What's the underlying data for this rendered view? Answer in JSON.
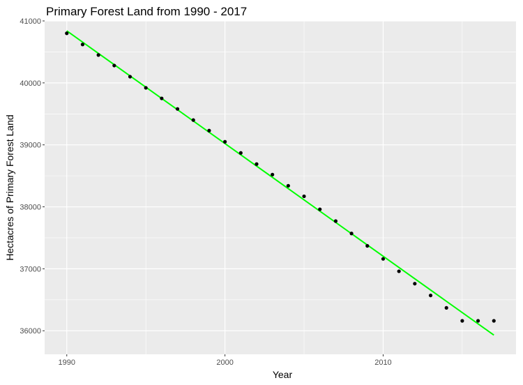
{
  "chart_data": {
    "type": "scatter",
    "title": "Primary Forest Land from 1990 - 2017",
    "xlabel": "Year",
    "ylabel": "Hectacres of Primary Forest Land",
    "xlim": [
      1988.6,
      2018.4
    ],
    "ylim": [
      35620,
      41000
    ],
    "x_ticks": [
      1990,
      2000,
      2010
    ],
    "y_ticks": [
      36000,
      37000,
      38000,
      39000,
      40000,
      41000
    ],
    "x_tick_labels": [
      "1990",
      "2000",
      "2010"
    ],
    "y_tick_labels": [
      "36000",
      "37000",
      "38000",
      "39000",
      "40000",
      "41000"
    ],
    "grid": true,
    "background_color": "#ebebeb",
    "grid_color": "#ffffff",
    "points": {
      "color": "#000000",
      "x": [
        1990,
        1991,
        1992,
        1993,
        1994,
        1995,
        1996,
        1997,
        1998,
        1999,
        2000,
        2001,
        2002,
        2003,
        2004,
        2005,
        2006,
        2007,
        2008,
        2009,
        2010,
        2011,
        2012,
        2013,
        2014,
        2015,
        2016,
        2017
      ],
      "y": [
        40800,
        40620,
        40450,
        40280,
        40100,
        39920,
        39750,
        39580,
        39400,
        39230,
        39050,
        38870,
        38690,
        38520,
        38340,
        38170,
        37960,
        37770,
        37570,
        37370,
        37160,
        36960,
        36760,
        36570,
        36370,
        36160,
        36160,
        36160
      ]
    },
    "trend_line": {
      "type": "linear",
      "color": "#00ff00",
      "x": [
        1990,
        2017
      ],
      "y": [
        40840,
        35930
      ]
    }
  }
}
